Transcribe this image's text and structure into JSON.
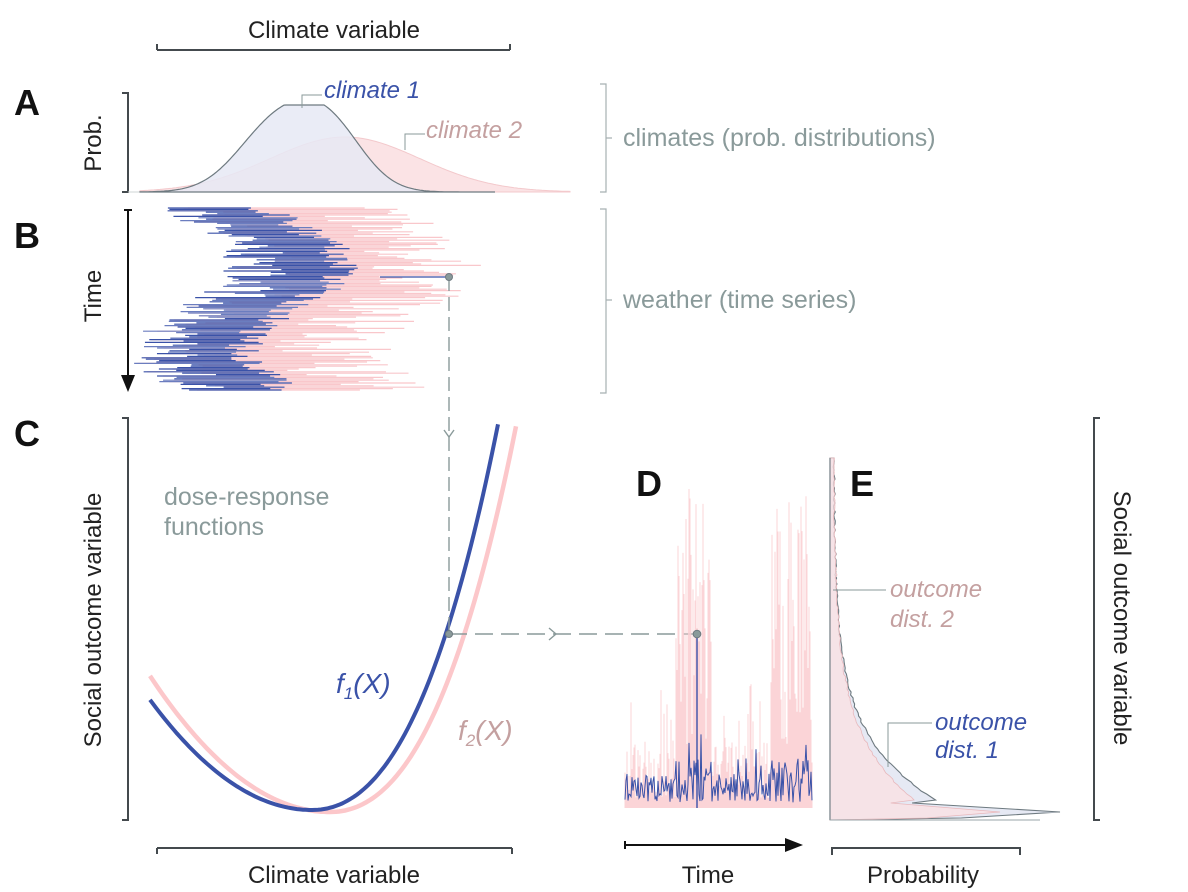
{
  "chart_data": {
    "type": "diagram",
    "title": "",
    "colors": {
      "climate1": "#3a52a8",
      "climate2": "#f7c4c8",
      "climate1_fill": "#e6e9f4",
      "climate2_fill": "#fbe3e5",
      "overlap_fill": "#e6dbe3",
      "annotation": "#8a9a9a",
      "axis": "#444a4e",
      "label_dark": "#222222"
    },
    "panels": {
      "A": {
        "letter": "A",
        "type": "density",
        "xlabel": "Climate variable",
        "ylabel": "Prob.",
        "side_note": "climates (prob. distributions)",
        "series": [
          {
            "name": "climate 1",
            "shape": "bimodal-narrow",
            "peak_rel": 1.0
          },
          {
            "name": "climate 2",
            "shape": "wide",
            "peak_rel": 0.58
          }
        ]
      },
      "B": {
        "letter": "B",
        "type": "time-series",
        "ylabel": "Time",
        "side_note": "weather (time series)",
        "series": [
          {
            "name": "climate 1 weather"
          },
          {
            "name": "climate 2 weather"
          }
        ]
      },
      "C": {
        "letter": "C",
        "type": "line",
        "xlabel": "Climate variable",
        "ylabel": "Social outcome variable",
        "note_line1": "dose-response",
        "note_line2": "functions",
        "series": [
          {
            "name": "f1(X)",
            "label_main": "f",
            "label_sub": "1",
            "label_tail": "(X)"
          },
          {
            "name": "f2(X)",
            "label_main": "f",
            "label_sub": "2",
            "label_tail": "(X)"
          }
        ]
      },
      "D": {
        "letter": "D",
        "type": "time-series",
        "xlabel": "Time"
      },
      "E": {
        "letter": "E",
        "type": "density",
        "xlabel": "Probability",
        "ylabel": "Social outcome variable",
        "series": [
          {
            "name": "outcome dist. 1",
            "label_line1": "outcome",
            "label_line2": "dist. 1"
          },
          {
            "name": "outcome dist. 2",
            "label_line1": "outcome",
            "label_line2": "dist. 2"
          }
        ]
      }
    }
  }
}
